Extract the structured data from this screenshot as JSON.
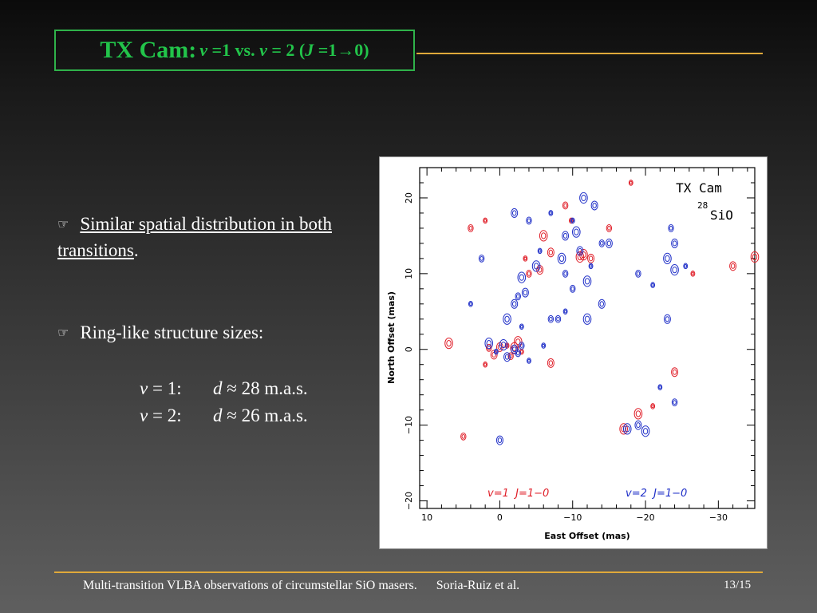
{
  "title": {
    "main": "TX Cam:",
    "v_symbol": "v",
    "part1": " =1 vs. ",
    "part2": " = 2 (",
    "j_symbol": "J",
    "part3": " =1→0)"
  },
  "bullets": {
    "b1_underlined": "Similar spatial distribution in both transitions",
    "b1_end": ".",
    "b2": "Ring-like structure sizes:",
    "sizes": [
      {
        "label_var": "v",
        "label": " = 1:",
        "d": "d",
        "value": " ≈ 28 m.a.s."
      },
      {
        "label_var": "v",
        "label": " = 2:",
        "d": "d",
        "value": " ≈ 26 m.a.s."
      }
    ]
  },
  "chart_data": {
    "type": "scatter",
    "title": "TX Cam",
    "subtitle_sup": "28",
    "subtitle": "SiO",
    "xlabel": "East Offset (mas)",
    "ylabel": "North Offset (mas)",
    "xlim": [
      11,
      -35
    ],
    "ylim": [
      -21,
      24
    ],
    "xticks": [
      10,
      0,
      -10,
      -20,
      -30
    ],
    "xtick_labels": [
      "10",
      "0",
      "−10",
      "−20",
      "−30"
    ],
    "yticks": [
      20,
      10,
      0,
      -10,
      -20
    ],
    "ytick_labels": [
      "20",
      "10",
      "0",
      "−10",
      "−20"
    ],
    "legend": "bottom",
    "series": [
      {
        "name": "v=1  J=1−0",
        "color": "#e0202a",
        "points": [
          [
            -1,
            0.5
          ],
          [
            -2,
            0.2
          ],
          [
            0,
            0.3
          ],
          [
            1.5,
            0.2
          ],
          [
            -3,
            -0.3
          ],
          [
            -2.5,
            1
          ],
          [
            0.8,
            -0.7
          ],
          [
            -1.5,
            -0.9
          ],
          [
            2,
            -2
          ],
          [
            7,
            0.8
          ],
          [
            -7,
            -1.8
          ],
          [
            -4,
            10
          ],
          [
            -3.5,
            12
          ],
          [
            -6,
            15
          ],
          [
            -7,
            12.8
          ],
          [
            -9,
            19
          ],
          [
            -9.8,
            17
          ],
          [
            -11.5,
            12.5
          ],
          [
            -12.5,
            12
          ],
          [
            -15,
            16
          ],
          [
            -18,
            22
          ],
          [
            -17,
            -10.5
          ],
          [
            -24,
            -3
          ],
          [
            -36,
            11
          ],
          [
            -26.5,
            10
          ],
          [
            -35,
            12.2
          ],
          [
            -32,
            11
          ],
          [
            4,
            16
          ],
          [
            2,
            17
          ],
          [
            -11,
            12.2
          ],
          [
            -5.5,
            10.5
          ],
          [
            5,
            -11.5
          ],
          [
            -21,
            -7.5
          ],
          [
            -19,
            -8.5
          ]
        ]
      },
      {
        "name": "v=2  J=1−0",
        "color": "#2030c8",
        "points": [
          [
            -0.5,
            0.6
          ],
          [
            -2,
            0
          ],
          [
            -3,
            0.5
          ],
          [
            0.5,
            -0.3
          ],
          [
            1.5,
            0.8
          ],
          [
            -1,
            -1
          ],
          [
            -2.5,
            -0.5
          ],
          [
            -4,
            -1.5
          ],
          [
            -3,
            9.5
          ],
          [
            -3.5,
            7.5
          ],
          [
            -2.5,
            7
          ],
          [
            -5.5,
            13
          ],
          [
            -8.5,
            12
          ],
          [
            -9,
            15
          ],
          [
            -9,
            10
          ],
          [
            -10,
            17
          ],
          [
            -10.5,
            15.5
          ],
          [
            -11,
            13
          ],
          [
            -10,
            8
          ],
          [
            -12.5,
            11
          ],
          [
            -12,
            9
          ],
          [
            -15,
            14
          ],
          [
            -8,
            4
          ],
          [
            -9,
            5
          ],
          [
            -12,
            4
          ],
          [
            -14,
            6
          ],
          [
            -19,
            10
          ],
          [
            -21,
            8.5
          ],
          [
            -23,
            12
          ],
          [
            -24,
            14
          ],
          [
            -23.5,
            16
          ],
          [
            -25.5,
            11
          ],
          [
            -24,
            10.5
          ],
          [
            -23,
            4
          ],
          [
            -24,
            -7
          ],
          [
            -22,
            -5
          ],
          [
            -17.5,
            -10.5
          ],
          [
            -19,
            -10
          ],
          [
            -7,
            4
          ],
          [
            -3,
            3
          ],
          [
            -1,
            4
          ],
          [
            -2,
            6
          ],
          [
            2.5,
            12
          ],
          [
            4,
            6
          ],
          [
            -20,
            -10.8
          ],
          [
            0,
            -12
          ],
          [
            -4,
            17
          ],
          [
            -7,
            18
          ],
          [
            -11.5,
            20
          ],
          [
            -13,
            19
          ],
          [
            -14,
            14
          ],
          [
            -6,
            0.5
          ],
          [
            -5,
            11
          ],
          [
            -2,
            18
          ]
        ]
      }
    ]
  },
  "footer": {
    "text": "Multi-transition VLBA observations of circumstellar SiO masers.",
    "author": "Soria-Ruiz et al.",
    "page": "13/15"
  }
}
